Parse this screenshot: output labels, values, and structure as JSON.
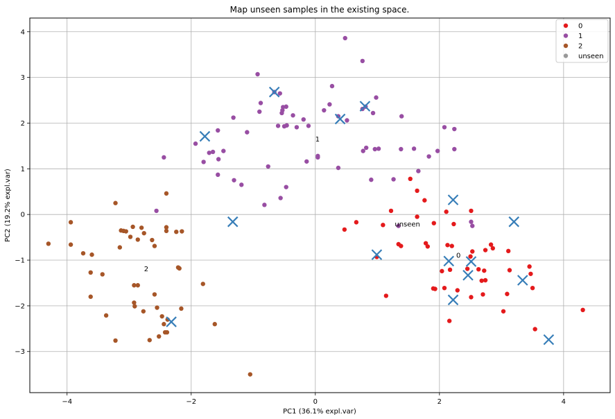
{
  "chart_data": {
    "type": "scatter",
    "title": "Map unseen samples in the existing space.",
    "xlabel": "PC1 (36.1% expl.var)",
    "ylabel": "PC2 (19.2% expl.var)",
    "xlim": [
      -4.6,
      4.75
    ],
    "ylim": [
      -3.9,
      4.3
    ],
    "xticks": [
      -4,
      -2,
      0,
      2,
      4
    ],
    "yticks": [
      -3,
      -2,
      -1,
      0,
      1,
      2,
      3,
      4
    ],
    "grid": true,
    "legend_position": "top-right",
    "series": [
      {
        "name": "0",
        "color": "#e41a1c",
        "points": [
          [
            1.53,
            0.78
          ],
          [
            1.64,
            0.52
          ],
          [
            1.76,
            0.31
          ],
          [
            2.11,
            0.06
          ],
          [
            2.51,
            0.08
          ],
          [
            1.22,
            0.08
          ],
          [
            1.09,
            -0.23
          ],
          [
            1.64,
            -0.05
          ],
          [
            1.91,
            -0.19
          ],
          [
            2.23,
            -0.21
          ],
          [
            0.66,
            -0.17
          ],
          [
            0.47,
            -0.33
          ],
          [
            1.34,
            -0.65
          ],
          [
            1.38,
            -0.69
          ],
          [
            1.78,
            -0.63
          ],
          [
            1.81,
            -0.7
          ],
          [
            2.13,
            -0.67
          ],
          [
            2.2,
            -0.69
          ],
          [
            2.53,
            -0.81
          ],
          [
            2.74,
            -0.78
          ],
          [
            2.83,
            -0.66
          ],
          [
            2.86,
            -0.74
          ],
          [
            3.11,
            -0.8
          ],
          [
            0.99,
            -0.93
          ],
          [
            2.5,
            -0.92
          ],
          [
            2.04,
            -1.24
          ],
          [
            2.17,
            -1.21
          ],
          [
            2.45,
            -1.19
          ],
          [
            2.63,
            -1.2
          ],
          [
            2.72,
            -1.23
          ],
          [
            3.13,
            -1.22
          ],
          [
            3.45,
            -1.14
          ],
          [
            3.47,
            -1.3
          ],
          [
            2.68,
            -1.45
          ],
          [
            2.74,
            -1.44
          ],
          [
            1.9,
            -1.62
          ],
          [
            1.93,
            -1.63
          ],
          [
            2.08,
            -1.61
          ],
          [
            2.29,
            -1.66
          ],
          [
            3.5,
            -1.61
          ],
          [
            1.14,
            -1.78
          ],
          [
            2.51,
            -1.81
          ],
          [
            2.7,
            -1.75
          ],
          [
            3.09,
            -1.74
          ],
          [
            3.03,
            -2.12
          ],
          [
            4.31,
            -2.09
          ],
          [
            2.16,
            -2.33
          ],
          [
            3.54,
            -2.51
          ]
        ]
      },
      {
        "name": "1",
        "color": "#984ea3",
        "points": [
          [
            0.48,
            3.86
          ],
          [
            0.76,
            3.36
          ],
          [
            -0.93,
            3.07
          ],
          [
            -0.57,
            2.65
          ],
          [
            0.27,
            2.81
          ],
          [
            -0.88,
            2.44
          ],
          [
            0.98,
            2.56
          ],
          [
            -0.66,
            2.68
          ],
          [
            0.14,
            2.28
          ],
          [
            0.23,
            2.41
          ],
          [
            0.81,
            2.36
          ],
          [
            -0.52,
            2.35
          ],
          [
            -0.47,
            2.36
          ],
          [
            -0.54,
            2.22
          ],
          [
            -0.53,
            2.28
          ],
          [
            0.93,
            2.22
          ],
          [
            0.76,
            2.31
          ],
          [
            -0.9,
            2.25
          ],
          [
            -0.36,
            2.17
          ],
          [
            -0.19,
            2.08
          ],
          [
            -1.32,
            2.12
          ],
          [
            0.37,
            2.15
          ],
          [
            0.51,
            2.06
          ],
          [
            -1.1,
            1.8
          ],
          [
            1.39,
            2.15
          ],
          [
            -0.6,
            1.94
          ],
          [
            -0.5,
            1.93
          ],
          [
            -0.46,
            1.95
          ],
          [
            -0.3,
            1.91
          ],
          [
            -0.11,
            1.94
          ],
          [
            2.08,
            1.91
          ],
          [
            2.24,
            1.87
          ],
          [
            -1.57,
            1.84
          ],
          [
            -1.93,
            1.55
          ],
          [
            -1.8,
            1.15
          ],
          [
            -1.71,
            1.35
          ],
          [
            -1.65,
            1.37
          ],
          [
            -1.56,
            1.21
          ],
          [
            -1.48,
            1.39
          ],
          [
            0.82,
            1.46
          ],
          [
            0.96,
            1.43
          ],
          [
            1.02,
            1.44
          ],
          [
            0.77,
            1.39
          ],
          [
            1.38,
            1.43
          ],
          [
            1.59,
            1.44
          ],
          [
            1.97,
            1.39
          ],
          [
            2.24,
            1.43
          ],
          [
            0.04,
            1.25
          ],
          [
            0.04,
            1.28
          ],
          [
            -0.14,
            1.16
          ],
          [
            1.83,
            1.27
          ],
          [
            -2.44,
            1.25
          ],
          [
            -0.76,
            1.05
          ],
          [
            0.37,
            1.02
          ],
          [
            1.66,
            0.95
          ],
          [
            -1.57,
            0.87
          ],
          [
            -1.31,
            0.75
          ],
          [
            -1.19,
            0.65
          ],
          [
            0.9,
            0.76
          ],
          [
            1.26,
            0.77
          ],
          [
            -0.47,
            0.6
          ],
          [
            -0.56,
            0.36
          ],
          [
            -0.82,
            0.21
          ],
          [
            -2.56,
            0.08
          ],
          [
            2.51,
            -0.16
          ],
          [
            2.53,
            -0.25
          ],
          [
            1.34,
            -0.25
          ]
        ]
      },
      {
        "name": "2",
        "color": "#a65628",
        "points": [
          [
            -4.3,
            -0.64
          ],
          [
            -3.94,
            -0.17
          ],
          [
            -3.94,
            -0.66
          ],
          [
            -3.22,
            0.25
          ],
          [
            -2.4,
            0.46
          ],
          [
            -3.74,
            -0.85
          ],
          [
            -3.6,
            -0.88
          ],
          [
            -3.13,
            -0.35
          ],
          [
            -3.09,
            -0.36
          ],
          [
            -3.05,
            -0.37
          ],
          [
            -2.94,
            -0.27
          ],
          [
            -2.8,
            -0.29
          ],
          [
            -2.4,
            -0.28
          ],
          [
            -2.24,
            -0.38
          ],
          [
            -2.15,
            -0.37
          ],
          [
            -2.4,
            -0.36
          ],
          [
            -3.15,
            -0.72
          ],
          [
            -2.98,
            -0.49
          ],
          [
            -2.86,
            -0.55
          ],
          [
            -2.76,
            -0.41
          ],
          [
            -2.63,
            -0.56
          ],
          [
            -2.59,
            -0.69
          ],
          [
            -3.62,
            -1.27
          ],
          [
            -3.43,
            -1.31
          ],
          [
            -2.21,
            -1.16
          ],
          [
            -2.19,
            -1.18
          ],
          [
            -3.62,
            -1.8
          ],
          [
            -2.92,
            -1.55
          ],
          [
            -2.86,
            -1.55
          ],
          [
            -2.92,
            -1.93
          ],
          [
            -2.91,
            -2.01
          ],
          [
            -2.77,
            -2.12
          ],
          [
            -2.59,
            -1.75
          ],
          [
            -2.55,
            -2.04
          ],
          [
            -2.16,
            -2.06
          ],
          [
            -3.37,
            -2.21
          ],
          [
            -2.47,
            -2.23
          ],
          [
            -2.44,
            -2.4
          ],
          [
            -2.38,
            -2.3
          ],
          [
            -2.42,
            -2.58
          ],
          [
            -2.39,
            -2.58
          ],
          [
            -2.67,
            -2.75
          ],
          [
            -3.22,
            -2.76
          ],
          [
            -2.52,
            -2.67
          ],
          [
            -1.81,
            -1.52
          ],
          [
            -1.62,
            -2.4
          ],
          [
            -1.05,
            -3.5
          ]
        ]
      },
      {
        "name": "unseen",
        "color": "#999999",
        "points": []
      }
    ],
    "centroids": {
      "color": "#377eb8",
      "marker": "x",
      "points": [
        [
          -0.66,
          2.68
        ],
        [
          0.8,
          2.37
        ],
        [
          0.4,
          2.09
        ],
        [
          -1.78,
          1.71
        ],
        [
          2.22,
          0.32
        ],
        [
          -1.33,
          -0.16
        ],
        [
          3.2,
          -0.16
        ],
        [
          0.99,
          -0.88
        ],
        [
          2.15,
          -1.02
        ],
        [
          2.51,
          -1.03
        ],
        [
          2.46,
          -1.33
        ],
        [
          3.34,
          -1.44
        ],
        [
          2.22,
          -1.87
        ],
        [
          -2.32,
          -2.35
        ],
        [
          3.76,
          -2.74
        ]
      ]
    },
    "annotations": [
      {
        "text": "1",
        "x": 0.0,
        "y": 1.65
      },
      {
        "text": "unseen",
        "x": 1.28,
        "y": -0.21
      },
      {
        "text": "0",
        "x": 2.27,
        "y": -0.89
      },
      {
        "text": "2",
        "x": -2.76,
        "y": -1.19
      }
    ]
  }
}
